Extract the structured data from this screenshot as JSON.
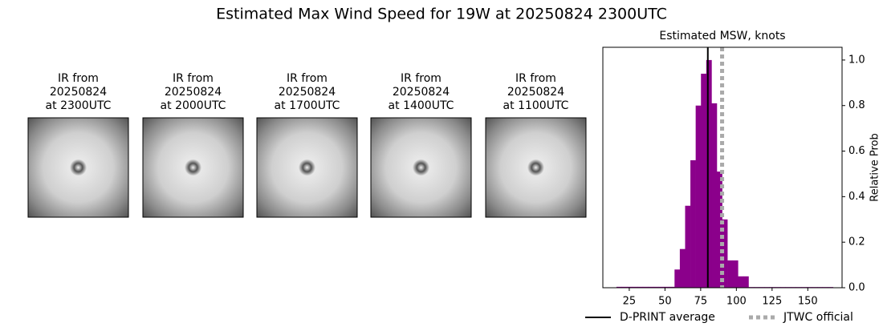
{
  "title": "Estimated Max Wind Speed for 19W at 20250824 2300UTC",
  "panels": [
    {
      "label": [
        "IR from",
        "20250824",
        "at 2300UTC"
      ]
    },
    {
      "label": [
        "IR from",
        "20250824",
        "at 2000UTC"
      ]
    },
    {
      "label": [
        "IR from",
        "20250824",
        "at 1700UTC"
      ]
    },
    {
      "label": [
        "IR from",
        "20250824",
        "at 1400UTC"
      ]
    },
    {
      "label": [
        "IR from",
        "20250824",
        "at 1100UTC"
      ]
    }
  ],
  "chart_data": {
    "type": "histogram",
    "title": "Estimated MSW, knots",
    "ylabel": "Relative Prob",
    "color": "#8b008b",
    "bins": [
      16,
      19.7,
      23.4,
      27.1,
      30.8,
      34.5,
      38.2,
      41.9,
      45.6,
      49.3,
      53,
      56.7,
      60.4,
      64.1,
      67.8,
      71.5,
      75.2,
      78.9,
      82.6,
      86.3,
      90,
      93.7,
      97.4,
      101.1,
      104.8,
      108.5,
      112.2,
      115.9,
      119.6,
      123.3,
      127,
      130.7,
      134.4,
      138.1,
      141.8,
      145.5,
      149.2,
      152.9,
      156.6,
      160.3,
      164,
      167.7
    ],
    "values": [
      0.004,
      0.004,
      0.004,
      0.004,
      0.004,
      0.004,
      0.004,
      0.004,
      0.004,
      0.004,
      0.004,
      0.08,
      0.17,
      0.36,
      0.56,
      0.8,
      0.94,
      1.0,
      0.81,
      0.51,
      0.3,
      0.12,
      0.12,
      0.05,
      0.05,
      0.003,
      0.003,
      0.003,
      0.003,
      0.003,
      0.003,
      0.003,
      0.003,
      0.003,
      0.003,
      0.003,
      0.003,
      0.003,
      0.003,
      0.003,
      0.003
    ],
    "xlim": [
      6.5,
      174
    ],
    "ylim": [
      0,
      1.056
    ],
    "xticks": [
      25,
      50,
      75,
      100,
      125,
      150
    ],
    "yticks": [
      {
        "value": 0,
        "label": "0.0"
      },
      {
        "value": 0.2,
        "label": "0.2"
      },
      {
        "value": 0.4,
        "label": "0.4"
      },
      {
        "value": 0.6,
        "label": "0.6"
      },
      {
        "value": 0.8,
        "label": "0.8"
      },
      {
        "value": 1,
        "label": "1.0"
      }
    ],
    "lines": [
      {
        "name": "D-PRINT average",
        "color": "#000000",
        "value": 80,
        "dashed": false
      },
      {
        "name": "JTWC official",
        "color": "#aaaaaa",
        "value": 90,
        "dashed": true
      }
    ]
  }
}
